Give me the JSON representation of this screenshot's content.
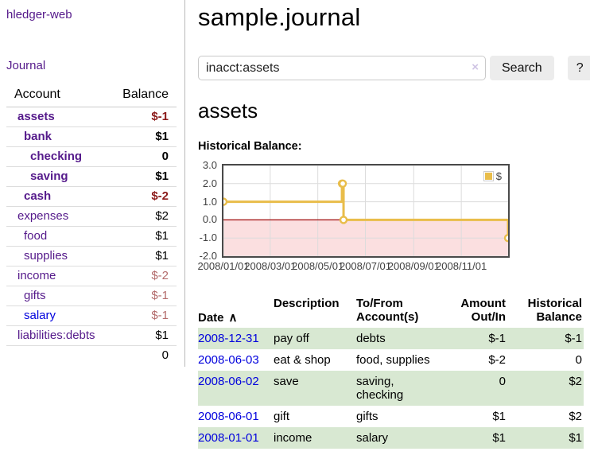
{
  "app": {
    "brand": "hledger-web"
  },
  "colors": {
    "link_visited": "#551a8b",
    "link_unvisited": "#0202dd",
    "negative_strong": "#8b1a1a",
    "negative_muted": "#b36b6b",
    "row_highlight": "#d8e8d2",
    "button_bg": "#ececec"
  },
  "sidebar": {
    "nav_journal": "Journal",
    "table": {
      "header_account": "Account",
      "header_balance": "Balance",
      "rows": [
        {
          "account": "assets",
          "balance": "$-1",
          "indent": 1,
          "bold": true,
          "neg": true,
          "link": "visited"
        },
        {
          "account": "bank",
          "balance": "$1",
          "indent": 2,
          "bold": true,
          "neg": false,
          "link": "visited"
        },
        {
          "account": "checking",
          "balance": "0",
          "indent": 3,
          "bold": true,
          "neg": false,
          "link": "visited"
        },
        {
          "account": "saving",
          "balance": "$1",
          "indent": 3,
          "bold": true,
          "neg": false,
          "link": "visited"
        },
        {
          "account": "cash",
          "balance": "$-2",
          "indent": 2,
          "bold": true,
          "neg": true,
          "link": "visited"
        },
        {
          "account": "expenses",
          "balance": "$2",
          "indent": 1,
          "bold": false,
          "neg": false,
          "link": "visited"
        },
        {
          "account": "food",
          "balance": "$1",
          "indent": 2,
          "bold": false,
          "neg": false,
          "link": "visited"
        },
        {
          "account": "supplies",
          "balance": "$1",
          "indent": 2,
          "bold": false,
          "neg": false,
          "link": "visited"
        },
        {
          "account": "income",
          "balance": "$-2",
          "indent": 1,
          "bold": false,
          "neg": true,
          "link": "visited"
        },
        {
          "account": "gifts",
          "balance": "$-1",
          "indent": 2,
          "bold": false,
          "neg": true,
          "link": "visited"
        },
        {
          "account": "salary",
          "balance": "$-1",
          "indent": 2,
          "bold": false,
          "neg": true,
          "link": "unvisited"
        },
        {
          "account": "liabilities:debts",
          "balance": "$1",
          "indent": 1,
          "bold": false,
          "neg": false,
          "link": "visited"
        }
      ],
      "total": "0"
    }
  },
  "header": {
    "title": "sample.journal"
  },
  "search": {
    "value": "inacct:assets",
    "clear_label": "×",
    "button_label": "Search",
    "help_label": "?"
  },
  "account_page": {
    "heading": "assets",
    "chart_title": "Historical Balance:"
  },
  "chart_data": {
    "type": "line",
    "step": true,
    "title": "Historical Balance:",
    "series": [
      {
        "name": "$",
        "color": "#e9bd4a",
        "points": [
          [
            "2008/01/01",
            1
          ],
          [
            "2008/06/01",
            2
          ],
          [
            "2008/06/02",
            2
          ],
          [
            "2008/06/03",
            0
          ],
          [
            "2008/12/31",
            -1
          ]
        ]
      }
    ],
    "xlim": [
      "2008/01/01",
      "2008/12/31"
    ],
    "ylim": [
      -2,
      3
    ],
    "xticks": [
      "2008/01/01",
      "2008/03/01",
      "2008/05/01",
      "2008/07/01",
      "2008/09/01",
      "2008/11/01"
    ],
    "yticks": [
      3,
      2,
      1,
      0,
      -1,
      -2
    ],
    "ytick_labels": [
      "3.0",
      "2.0",
      "1.0",
      "0.0",
      "-1.0",
      "-2.0"
    ],
    "legend": "$",
    "legend_position": "top-right",
    "grid": true,
    "grid_color": "#dcdcdc",
    "negative_fill": "#fbdfe0",
    "zero_line_color": "#a00808",
    "border_color": "#4a4a4a"
  },
  "register": {
    "headers": {
      "date": "Date",
      "sort_icon": "∧",
      "description": "Description",
      "tofrom": "To/From\nAccount(s)",
      "amount": "Amount\nOut/In",
      "balance": "Historical\nBalance"
    },
    "rows": [
      {
        "date": "2008-12-31",
        "description": "pay off",
        "accounts": "debts",
        "amount": "$-1",
        "amount_neg": true,
        "balance": "$-1",
        "balance_neg": true
      },
      {
        "date": "2008-06-03",
        "description": "eat & shop",
        "accounts": "food, supplies",
        "amount": "$-2",
        "amount_neg": true,
        "balance": "0",
        "balance_neg": false
      },
      {
        "date": "2008-06-02",
        "description": "save",
        "accounts": "saving, checking",
        "amount": "0",
        "amount_neg": false,
        "balance": "$2",
        "balance_neg": false
      },
      {
        "date": "2008-06-01",
        "description": "gift",
        "accounts": "gifts",
        "amount": "$1",
        "amount_neg": false,
        "balance": "$2",
        "balance_neg": false
      },
      {
        "date": "2008-01-01",
        "description": "income",
        "accounts": "salary",
        "amount": "$1",
        "amount_neg": false,
        "balance": "$1",
        "balance_neg": false
      }
    ]
  }
}
